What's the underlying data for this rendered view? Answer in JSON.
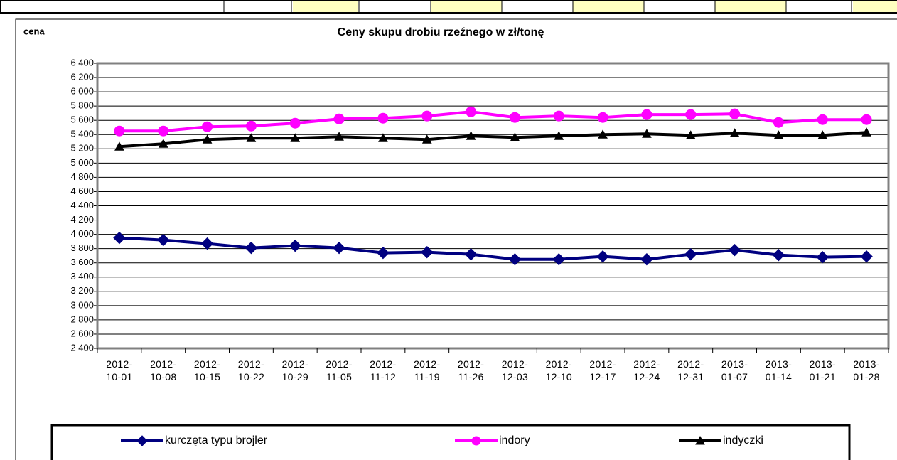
{
  "chart_data": {
    "type": "line",
    "title": "Ceny skupu drobiu rzeźnego w zł/tonę",
    "y_label": "cena",
    "categories": [
      "2012-10-01",
      "2012-10-08",
      "2012-10-15",
      "2012-10-22",
      "2012-10-29",
      "2012-11-05",
      "2012-11-12",
      "2012-11-19",
      "2012-11-26",
      "2012-12-03",
      "2012-12-10",
      "2012-12-17",
      "2012-12-24",
      "2012-12-31",
      "2013-01-07",
      "2013-01-14",
      "2013-01-21",
      "2013-01-28"
    ],
    "series": [
      {
        "name": "kurczęta typu brojler",
        "color": "#000080",
        "marker": "diamond",
        "values": [
          3950,
          3920,
          3870,
          3810,
          3840,
          3810,
          3740,
          3750,
          3720,
          3650,
          3650,
          3690,
          3650,
          3720,
          3780,
          3710,
          3680,
          3690
        ]
      },
      {
        "name": "indory",
        "color": "#ff00ff",
        "marker": "circle",
        "values": [
          5450,
          5450,
          5510,
          5520,
          5560,
          5620,
          5630,
          5660,
          5720,
          5640,
          5660,
          5640,
          5680,
          5680,
          5690,
          5570,
          5610,
          5610
        ]
      },
      {
        "name": "indyczki",
        "color": "#000000",
        "marker": "triangle",
        "values": [
          5230,
          5270,
          5330,
          5350,
          5350,
          5370,
          5350,
          5330,
          5380,
          5360,
          5380,
          5400,
          5410,
          5390,
          5420,
          5390,
          5390,
          5430
        ]
      }
    ],
    "ylim": [
      2400,
      6400
    ],
    "yticks": [
      {
        "value": 2400,
        "label": "2 400"
      },
      {
        "value": 2600,
        "label": "2 600"
      },
      {
        "value": 2800,
        "label": "2 800"
      },
      {
        "value": 3000,
        "label": "3 000"
      },
      {
        "value": 3200,
        "label": "3 200"
      },
      {
        "value": 3400,
        "label": "3 400"
      },
      {
        "value": 3600,
        "label": "3 600"
      },
      {
        "value": 3800,
        "label": "3 800"
      },
      {
        "value": 4000,
        "label": "4 000"
      },
      {
        "value": 4200,
        "label": "4 200"
      },
      {
        "value": 4400,
        "label": "4 400"
      },
      {
        "value": 4600,
        "label": "4 600"
      },
      {
        "value": 4800,
        "label": "4 800"
      },
      {
        "value": 5000,
        "label": "5 000"
      },
      {
        "value": 5200,
        "label": "5 200"
      },
      {
        "value": 5400,
        "label": "5 400"
      },
      {
        "value": 5600,
        "label": "5 600"
      },
      {
        "value": 5800,
        "label": "5 800"
      },
      {
        "value": 6000,
        "label": "6 000"
      },
      {
        "value": 6200,
        "label": "6 200"
      },
      {
        "value": 6400,
        "label": "6 400"
      }
    ],
    "grid": true
  }
}
